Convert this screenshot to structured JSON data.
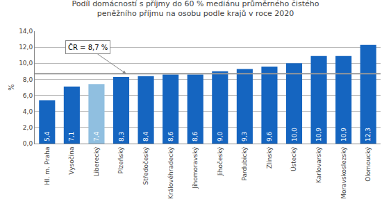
{
  "chart_data": {
    "type": "bar",
    "title": "Podíl domácností s příjmy do 60 % mediánu průměrného čistého\npeněžního příjmu na osobu podle krajů v roce 2020",
    "categories": [
      "Hl. m. Praha",
      "Vysočina",
      "Liberecký",
      "Plzeňský",
      "Středočeský",
      "Královéhradecký",
      "Jihomoravský",
      "Jihočeský",
      "Pardubický",
      "Zlínský",
      "Ústecký",
      "Karlovarský",
      "Moravskoslezský",
      "Olomoucký"
    ],
    "values": [
      5.4,
      7.1,
      7.4,
      8.3,
      8.4,
      8.6,
      8.6,
      9.0,
      9.3,
      9.6,
      10.0,
      10.9,
      10.9,
      12.3
    ],
    "value_labels": [
      "5,4",
      "7,1",
      "7,4",
      "8,3",
      "8,4",
      "8,6",
      "8,6",
      "9,0",
      "9,3",
      "9,6",
      "10,0",
      "10,9",
      "10,9",
      "12,3"
    ],
    "data_labels": true,
    "colors": [
      "#1565c0",
      "#1565c0",
      "#90bfe0",
      "#1565c0",
      "#1565c0",
      "#1565c0",
      "#1565c0",
      "#1565c0",
      "#1565c0",
      "#1565c0",
      "#1565c0",
      "#1565c0",
      "#1565c0",
      "#1565c0"
    ],
    "ylabel": "%",
    "ylim": [
      0,
      14.0
    ],
    "yticks": [
      {
        "value": 0.0,
        "label": "0,0"
      },
      {
        "value": 2.0,
        "label": "2,0"
      },
      {
        "value": 4.0,
        "label": "4,0"
      },
      {
        "value": 6.0,
        "label": "6,0"
      },
      {
        "value": 8.0,
        "label": "8,0"
      },
      {
        "value": 10.0,
        "label": "10,0"
      },
      {
        "value": 12.0,
        "label": "12,0"
      },
      {
        "value": 14.0,
        "label": "14,0"
      }
    ],
    "grid": true,
    "reference_line": {
      "y": 8.7,
      "label": "ČR = 8,7 %",
      "color": "#999999"
    }
  }
}
